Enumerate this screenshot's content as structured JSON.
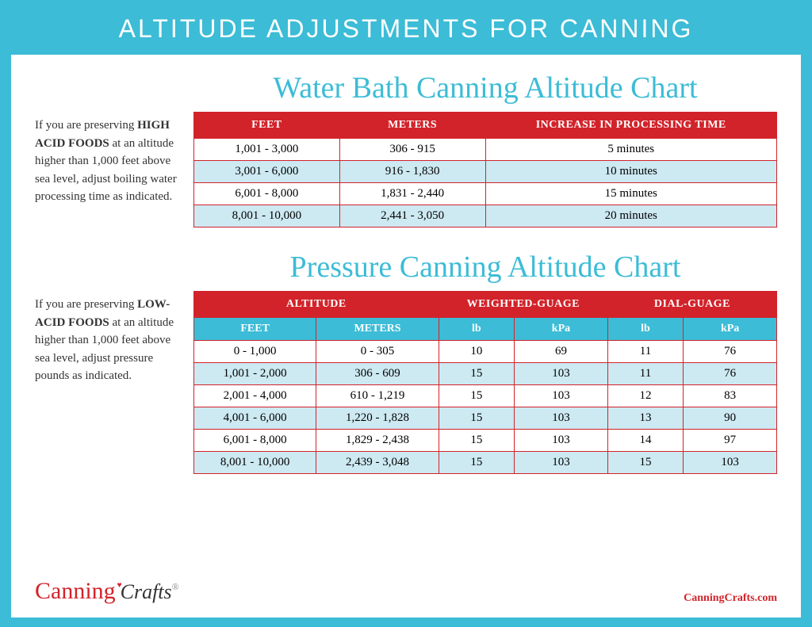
{
  "colors": {
    "cyan": "#3cbcd6",
    "red": "#d2232a",
    "alt_row": "#cde9f2",
    "white": "#ffffff",
    "text": "#333333"
  },
  "header": "ALTITUDE ADJUSTMENTS FOR CANNING",
  "waterbath": {
    "title": "Water Bath Canning Altitude Chart",
    "side_pre": "If you are preserving ",
    "side_bold": "HIGH ACID FOODS",
    "side_post": " at an altitude higher than 1,000 feet above sea level, adjust boiling water processing time as indicated.",
    "columns": [
      "FEET",
      "METERS",
      "INCREASE IN PROCESSING TIME"
    ],
    "rows": [
      [
        "1,001 - 3,000",
        "306 - 915",
        "5 minutes"
      ],
      [
        "3,001 - 6,000",
        "916 - 1,830",
        "10 minutes"
      ],
      [
        "6,001 - 8,000",
        "1,831 - 2,440",
        "15 minutes"
      ],
      [
        "8,001 - 10,000",
        "2,441 - 3,050",
        "20 minutes"
      ]
    ]
  },
  "pressure": {
    "title": "Pressure Canning Altitude Chart",
    "side_pre": "If you are preserving ",
    "side_bold": "LOW-ACID FOODS",
    "side_post": " at an altitude higher than 1,000 feet above sea level, adjust pressure pounds as indicated.",
    "top_headers": [
      "ALTITUDE",
      "WEIGHTED-GUAGE",
      "DIAL-GUAGE"
    ],
    "sub_headers": [
      "FEET",
      "METERS",
      "lb",
      "kPa",
      "lb",
      "kPa"
    ],
    "rows": [
      [
        "0 - 1,000",
        "0 - 305",
        "10",
        "69",
        "11",
        "76"
      ],
      [
        "1,001 - 2,000",
        "306 - 609",
        "15",
        "103",
        "11",
        "76"
      ],
      [
        "2,001 - 4,000",
        "610 - 1,219",
        "15",
        "103",
        "12",
        "83"
      ],
      [
        "4,001 - 6,000",
        "1,220 - 1,828",
        "15",
        "103",
        "13",
        "90"
      ],
      [
        "6,001 - 8,000",
        "1,829 - 2,438",
        "15",
        "103",
        "14",
        "97"
      ],
      [
        "8,001 - 10,000",
        "2,439 - 3,048",
        "15",
        "103",
        "15",
        "103"
      ]
    ]
  },
  "footer": {
    "logo_script": "Canning",
    "logo_rest": "Crafts",
    "url": "CanningCrafts.com"
  }
}
